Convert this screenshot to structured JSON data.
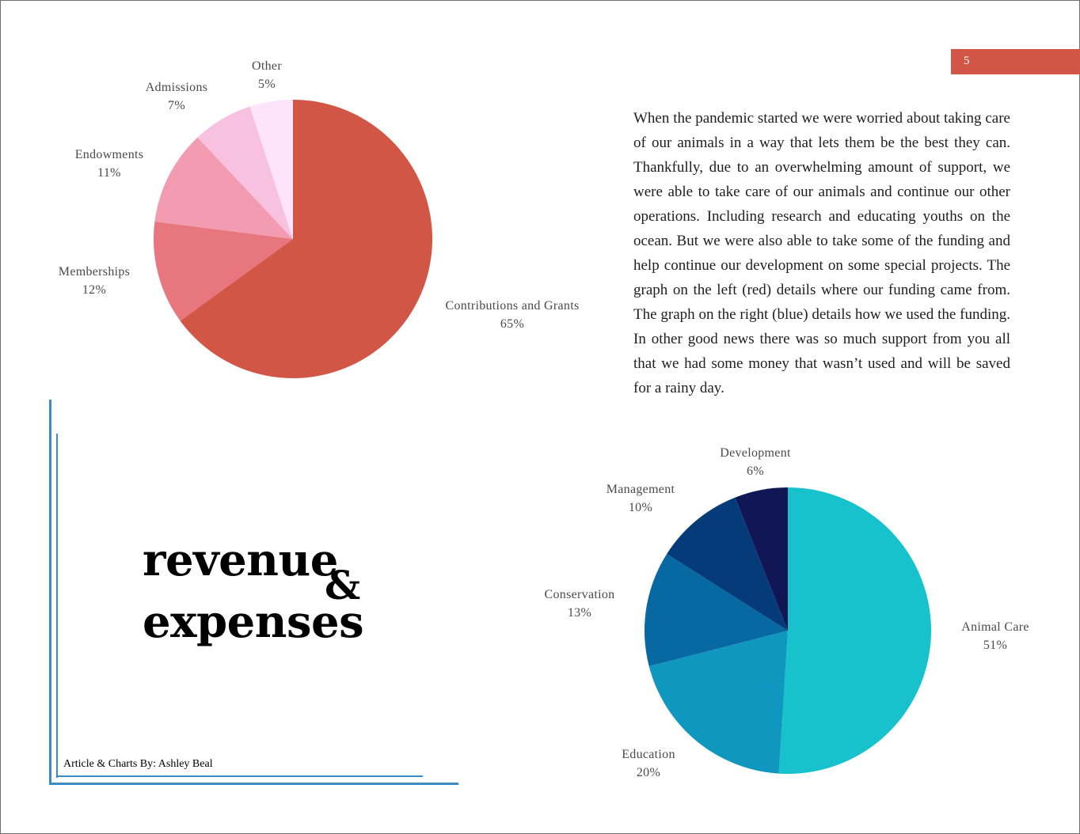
{
  "page_number": "5",
  "article_text": "When the pandemic started we were worried about taking care of our animals in a way that lets them be the best they can. Thankfully, due to an overwhelming amount of support, we were able to take care of our animals and continue our other operations. Including research and ed­ucating youths on the ocean. But we were also able to take some of the funding and help continue our development on some special projects. The graph on the left (red) details where our funding came from. The graph on the right (blue) details how we used the funding. In other good news there was so much support from you all that we had some money that wasn’t used and will be saved for a rainy day.",
  "title": {
    "line1": "revenue",
    "amp": "&",
    "line2": "expenses"
  },
  "byline": "Article & Charts By: Ashley Beal",
  "colors": {
    "accent_red": "#d15646",
    "accent_blue": "#3b8bc6"
  },
  "chart_data": [
    {
      "type": "pie",
      "title": "Revenue",
      "start": "top, clockwise",
      "slices": [
        {
          "label": "Contributions and Grants",
          "pct_label": "65%",
          "value": 65,
          "color": "#d15646"
        },
        {
          "label": "Memberships",
          "pct_label": "12%",
          "value": 12,
          "color": "#e8767f"
        },
        {
          "label": "Endowments",
          "pct_label": "11%",
          "value": 11,
          "color": "#f29bb1"
        },
        {
          "label": "Admissions",
          "pct_label": "7%",
          "value": 7,
          "color": "#f8c1df"
        },
        {
          "label": "Other",
          "pct_label": "5%",
          "value": 5,
          "color": "#fde4fb"
        }
      ]
    },
    {
      "type": "pie",
      "title": "Expenses",
      "start": "top, clockwise",
      "slices": [
        {
          "label": "Animal Care",
          "pct_label": "51%",
          "value": 51,
          "color": "#17c2cc"
        },
        {
          "label": "Education",
          "pct_label": "20%",
          "value": 20,
          "color": "#0f97bf"
        },
        {
          "label": "Conservation",
          "pct_label": "13%",
          "value": 13,
          "color": "#0868a2"
        },
        {
          "label": "Management",
          "pct_label": "10%",
          "value": 10,
          "color": "#053b79"
        },
        {
          "label": "Development",
          "pct_label": "6%",
          "value": 6,
          "color": "#111754"
        }
      ]
    }
  ]
}
